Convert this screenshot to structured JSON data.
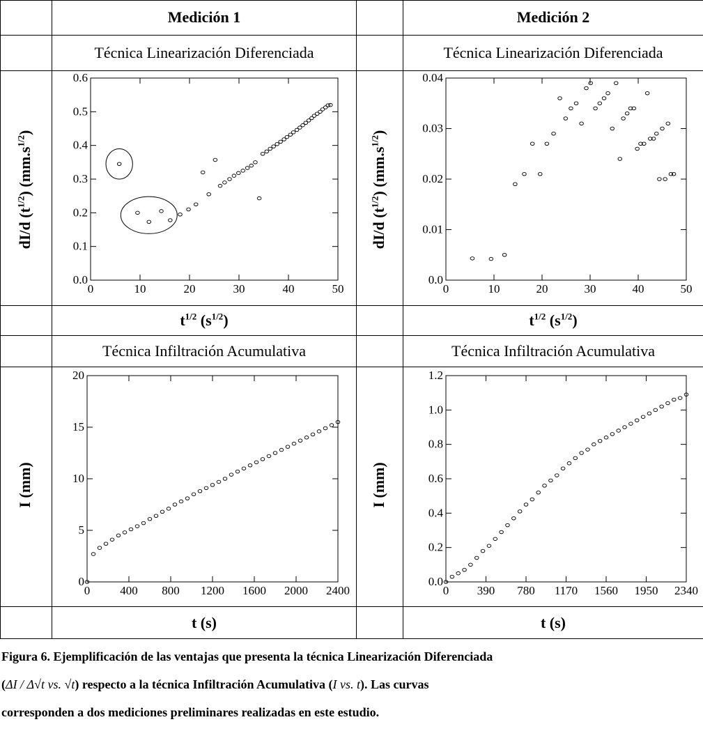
{
  "table": {
    "col1_header": "Medición 1",
    "col2_header": "Medición 2",
    "row1_label_left": "Técnica Linearización Diferenciada",
    "row1_label_right": "Técnica Linearización Diferenciada",
    "row2_label_left": "Técnica Infiltración Acumulativa",
    "row2_label_right": "Técnica Infiltración Acumulativa",
    "xlab_row1_base": "t",
    "xlab_row1_sup": "1/2",
    "xlab_row1_unit_base": "(s",
    "xlab_row1_unit_sup": "1/2",
    "xlab_row1_close": ")",
    "xlab_row2": "t (s)",
    "ylab_row1_a": "dI/d (t",
    "ylab_row1_sup1": "1/2",
    "ylab_row1_b": ") (mm.s",
    "ylab_row1_sup2": "1/2",
    "ylab_row1_c": ")",
    "ylab_row2": "I (mm)"
  },
  "caption": {
    "line1": "Figura 6. Ejemplificación de las ventajas que presenta la técnica Linearización Diferenciada",
    "line2_a": "(",
    "line2_math1": "ΔI / Δ√t vs. √t",
    "line2_b": ") respecto a la técnica Infiltración Acumulativa (",
    "line2_math2": "I vs. t",
    "line2_c": "). Las curvas",
    "line3": "corresponden a dos mediciones preliminares realizadas en este estudio."
  },
  "chart_data": [
    {
      "type": "scatter",
      "panel": "Medición 1 - Técnica Linearización Diferenciada",
      "xlim": [
        0,
        50
      ],
      "ylim": [
        0,
        0.6
      ],
      "xticks": [
        0,
        10,
        20,
        30,
        40,
        50
      ],
      "xticklabels": [
        "0",
        "10",
        "20",
        "30",
        "40",
        "50"
      ],
      "yticks": [
        0,
        0.1,
        0.2,
        0.3,
        0.4,
        0.5,
        0.6
      ],
      "yticklabels": [
        "0.0",
        "0.1",
        "0.2",
        "0.3",
        "0.4",
        "0.5",
        "0.6"
      ],
      "points": [
        [
          5.8,
          0.345
        ],
        [
          9.5,
          0.2
        ],
        [
          11.8,
          0.173
        ],
        [
          14.3,
          0.205
        ],
        [
          16.1,
          0.178
        ],
        [
          18.1,
          0.195
        ],
        [
          19.8,
          0.21
        ],
        [
          21.3,
          0.225
        ],
        [
          22.7,
          0.32
        ],
        [
          23.9,
          0.255
        ],
        [
          25.2,
          0.357
        ],
        [
          26.2,
          0.28
        ],
        [
          27.1,
          0.29
        ],
        [
          28.1,
          0.3
        ],
        [
          29.0,
          0.31
        ],
        [
          29.9,
          0.318
        ],
        [
          30.8,
          0.325
        ],
        [
          31.7,
          0.333
        ],
        [
          32.5,
          0.34
        ],
        [
          33.3,
          0.35
        ],
        [
          34.1,
          0.243
        ],
        [
          34.8,
          0.375
        ],
        [
          35.6,
          0.382
        ],
        [
          36.3,
          0.39
        ],
        [
          37.0,
          0.397
        ],
        [
          37.7,
          0.404
        ],
        [
          38.4,
          0.411
        ],
        [
          39.1,
          0.418
        ],
        [
          39.7,
          0.425
        ],
        [
          40.4,
          0.432
        ],
        [
          41.0,
          0.439
        ],
        [
          41.7,
          0.446
        ],
        [
          42.3,
          0.453
        ],
        [
          42.9,
          0.46
        ],
        [
          43.5,
          0.467
        ],
        [
          44.1,
          0.474
        ],
        [
          44.7,
          0.481
        ],
        [
          45.2,
          0.488
        ],
        [
          45.8,
          0.494
        ],
        [
          46.4,
          0.5
        ],
        [
          46.9,
          0.507
        ],
        [
          47.5,
          0.513
        ],
        [
          48.0,
          0.519
        ],
        [
          48.5,
          0.52
        ]
      ],
      "annotations": [
        {
          "shape": "circle",
          "cx": 5.8,
          "cy": 0.345,
          "rx": 2.7,
          "ry": 0.045
        },
        {
          "shape": "ellipse",
          "cx": 11.8,
          "cy": 0.193,
          "rx": 5.7,
          "ry": 0.055
        }
      ]
    },
    {
      "type": "scatter",
      "panel": "Medición 2 - Técnica Linearización Diferenciada",
      "xlim": [
        0,
        50
      ],
      "ylim": [
        0,
        0.04
      ],
      "xticks": [
        0,
        10,
        20,
        30,
        40,
        50
      ],
      "xticklabels": [
        "0",
        "10",
        "20",
        "30",
        "40",
        "50"
      ],
      "yticks": [
        0,
        0.01,
        0.02,
        0.03,
        0.04
      ],
      "yticklabels": [
        "0.0",
        "0.01",
        "0.02",
        "0.03",
        "0.04"
      ],
      "points": [
        [
          5.5,
          0.0043
        ],
        [
          9.4,
          0.0042
        ],
        [
          12.2,
          0.005
        ],
        [
          14.4,
          0.019
        ],
        [
          16.3,
          0.021
        ],
        [
          18.0,
          0.027
        ],
        [
          19.6,
          0.021
        ],
        [
          21.0,
          0.027
        ],
        [
          22.4,
          0.029
        ],
        [
          23.7,
          0.036
        ],
        [
          24.9,
          0.032
        ],
        [
          26.0,
          0.034
        ],
        [
          27.1,
          0.035
        ],
        [
          28.2,
          0.031
        ],
        [
          29.2,
          0.038
        ],
        [
          30.1,
          0.039
        ],
        [
          31.1,
          0.034
        ],
        [
          32.0,
          0.035
        ],
        [
          32.9,
          0.036
        ],
        [
          33.7,
          0.037
        ],
        [
          34.6,
          0.03
        ],
        [
          35.4,
          0.039
        ],
        [
          36.2,
          0.024
        ],
        [
          36.9,
          0.032
        ],
        [
          37.7,
          0.033
        ],
        [
          38.4,
          0.034
        ],
        [
          39.1,
          0.034
        ],
        [
          39.8,
          0.026
        ],
        [
          40.5,
          0.027
        ],
        [
          41.2,
          0.027
        ],
        [
          41.9,
          0.037
        ],
        [
          42.5,
          0.028
        ],
        [
          43.2,
          0.028
        ],
        [
          43.8,
          0.029
        ],
        [
          44.4,
          0.02
        ],
        [
          45.0,
          0.03
        ],
        [
          45.6,
          0.02
        ],
        [
          46.2,
          0.031
        ],
        [
          46.8,
          0.021
        ],
        [
          47.4,
          0.021
        ]
      ]
    },
    {
      "type": "scatter",
      "panel": "Medición 1 - Técnica Infiltración Acumulativa",
      "xlim": [
        0,
        2400
      ],
      "ylim": [
        0,
        20
      ],
      "xticks": [
        0,
        400,
        800,
        1200,
        1600,
        2000,
        2400
      ],
      "xticklabels": [
        "0",
        "400",
        "800",
        "1200",
        "1600",
        "2000",
        "2400"
      ],
      "yticks": [
        0,
        5,
        10,
        15,
        20
      ],
      "yticklabels": [
        "0",
        "5",
        "10",
        "15",
        "20"
      ],
      "points": [
        [
          0,
          0
        ],
        [
          60,
          2.7
        ],
        [
          120,
          3.3
        ],
        [
          180,
          3.7
        ],
        [
          240,
          4.1
        ],
        [
          300,
          4.5
        ],
        [
          360,
          4.8
        ],
        [
          420,
          5.1
        ],
        [
          480,
          5.4
        ],
        [
          540,
          5.7
        ],
        [
          600,
          6.1
        ],
        [
          660,
          6.4
        ],
        [
          720,
          6.8
        ],
        [
          780,
          7.1
        ],
        [
          840,
          7.5
        ],
        [
          900,
          7.8
        ],
        [
          960,
          8.1
        ],
        [
          1020,
          8.5
        ],
        [
          1080,
          8.8
        ],
        [
          1140,
          9.1
        ],
        [
          1200,
          9.4
        ],
        [
          1260,
          9.7
        ],
        [
          1320,
          10.0
        ],
        [
          1380,
          10.4
        ],
        [
          1440,
          10.7
        ],
        [
          1500,
          11.0
        ],
        [
          1560,
          11.3
        ],
        [
          1620,
          11.6
        ],
        [
          1680,
          11.9
        ],
        [
          1740,
          12.2
        ],
        [
          1800,
          12.5
        ],
        [
          1860,
          12.8
        ],
        [
          1920,
          13.1
        ],
        [
          1980,
          13.4
        ],
        [
          2040,
          13.7
        ],
        [
          2100,
          14.0
        ],
        [
          2160,
          14.3
        ],
        [
          2220,
          14.6
        ],
        [
          2280,
          14.9
        ],
        [
          2340,
          15.2
        ],
        [
          2400,
          15.5
        ]
      ]
    },
    {
      "type": "scatter",
      "panel": "Medición 2 - Técnica Infiltración Acumulativa",
      "xlim": [
        0,
        2340
      ],
      "ylim": [
        0,
        1.2
      ],
      "xticks": [
        0,
        390,
        780,
        1170,
        1560,
        1950,
        2340
      ],
      "xticklabels": [
        "0",
        "390",
        "780",
        "1170",
        "1560",
        "1950",
        "2340"
      ],
      "yticks": [
        0,
        0.2,
        0.4,
        0.6,
        0.8,
        1.0,
        1.2
      ],
      "yticklabels": [
        "0.0",
        "0.2",
        "0.4",
        "0.6",
        "0.8",
        "1.0",
        "1.2"
      ],
      "points": [
        [
          0,
          0
        ],
        [
          60,
          0.03
        ],
        [
          120,
          0.05
        ],
        [
          180,
          0.07
        ],
        [
          240,
          0.1
        ],
        [
          300,
          0.14
        ],
        [
          360,
          0.18
        ],
        [
          420,
          0.21
        ],
        [
          480,
          0.25
        ],
        [
          540,
          0.29
        ],
        [
          600,
          0.33
        ],
        [
          660,
          0.37
        ],
        [
          720,
          0.41
        ],
        [
          780,
          0.45
        ],
        [
          840,
          0.48
        ],
        [
          900,
          0.52
        ],
        [
          960,
          0.56
        ],
        [
          1020,
          0.59
        ],
        [
          1080,
          0.62
        ],
        [
          1140,
          0.66
        ],
        [
          1200,
          0.69
        ],
        [
          1260,
          0.72
        ],
        [
          1320,
          0.75
        ],
        [
          1380,
          0.77
        ],
        [
          1440,
          0.8
        ],
        [
          1500,
          0.82
        ],
        [
          1560,
          0.84
        ],
        [
          1620,
          0.86
        ],
        [
          1680,
          0.88
        ],
        [
          1740,
          0.9
        ],
        [
          1800,
          0.92
        ],
        [
          1860,
          0.94
        ],
        [
          1920,
          0.96
        ],
        [
          1980,
          0.98
        ],
        [
          2040,
          1.0
        ],
        [
          2100,
          1.02
        ],
        [
          2160,
          1.04
        ],
        [
          2220,
          1.06
        ],
        [
          2280,
          1.07
        ],
        [
          2340,
          1.09
        ]
      ]
    }
  ]
}
